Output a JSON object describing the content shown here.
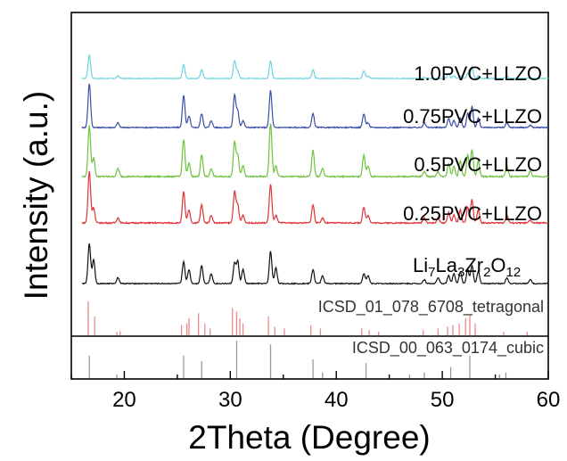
{
  "chart_data": {
    "type": "line",
    "xlabel": "2Theta (Degree)",
    "ylabel": "Intensity (a.u.)",
    "xlim": [
      15,
      60
    ],
    "xticks": [
      20,
      30,
      40,
      50,
      60
    ],
    "grid": false,
    "legend": "labels placed beside each pattern",
    "peaks_x": [
      16.7,
      17.1,
      19.4,
      25.6,
      26.1,
      27.3,
      28.2,
      30.4,
      30.7,
      31.2,
      33.8,
      34.3,
      37.8,
      38.7,
      42.6,
      43.0,
      48.3,
      49.6,
      50.6,
      51.1,
      51.7,
      52.4,
      52.8,
      53.4,
      56.1,
      58.3
    ],
    "series": [
      {
        "name": "1.0PVC+LLZO",
        "color": "#6cd3df",
        "peak_heights": [
          0.95,
          0,
          0.1,
          0.55,
          0,
          0.35,
          0,
          0.7,
          0.3,
          0,
          0.7,
          0,
          0.35,
          0,
          0.3,
          0.1,
          0.05,
          0,
          0.2,
          0.1,
          0.1,
          0.2,
          0.45,
          0.1,
          0.1,
          0
        ]
      },
      {
        "name": "0.75PVC+LLZO",
        "color": "#3b4ea6",
        "peak_heights": [
          0.95,
          0,
          0.1,
          0.7,
          0.25,
          0.3,
          0.15,
          0.7,
          0.35,
          0.15,
          0.8,
          0,
          0.3,
          0,
          0.3,
          0.1,
          0.1,
          0,
          0.2,
          0.15,
          0.2,
          0.3,
          0.45,
          0.2,
          0.1,
          0.05
        ]
      },
      {
        "name": "0.5PVC+LLZO",
        "color": "#6ec23f",
        "peak_heights": [
          0.95,
          0.35,
          0.15,
          0.7,
          0.25,
          0.4,
          0.15,
          0.65,
          0.4,
          0.2,
          1.0,
          0.2,
          0.5,
          0.15,
          0.4,
          0.2,
          0.1,
          0.1,
          0.25,
          0.2,
          0.3,
          0.4,
          0.5,
          0.3,
          0.2,
          0.1
        ]
      },
      {
        "name": "0.25PVC+LLZO",
        "color": "#e03138",
        "peak_heights": [
          1.0,
          0.3,
          0.1,
          0.6,
          0.25,
          0.35,
          0.15,
          0.6,
          0.35,
          0.15,
          0.75,
          0.15,
          0.35,
          0.1,
          0.3,
          0.15,
          0.1,
          0.1,
          0.2,
          0.15,
          0.25,
          0.3,
          0.45,
          0.25,
          0.15,
          0.05
        ]
      },
      {
        "name_parts": [
          {
            "t": "Li",
            "s": "n"
          },
          {
            "t": "7",
            "s": "sub"
          },
          {
            "t": "La",
            "s": "n"
          },
          {
            "t": "3",
            "s": "sub"
          },
          {
            "t": "Zr",
            "s": "n"
          },
          {
            "t": "2",
            "s": "sub"
          },
          {
            "t": "O",
            "s": "n"
          },
          {
            "t": "12",
            "s": "sub"
          }
        ],
        "name": "Li7La3Zr2O12",
        "color": "#111111",
        "peak_heights": [
          1.0,
          0.6,
          0.15,
          0.55,
          0.35,
          0.45,
          0.25,
          0.5,
          0.55,
          0.35,
          0.8,
          0.4,
          0.35,
          0.2,
          0.25,
          0.2,
          0.1,
          0.15,
          0.2,
          0.25,
          0.3,
          0.35,
          0.45,
          0.3,
          0.15,
          0.1
        ]
      }
    ],
    "references": [
      {
        "label": "ICSD_01_078_6708_tetragonal",
        "color": "#e88a8a",
        "lines_x": [
          16.6,
          17.2,
          19.3,
          19.6,
          25.4,
          25.9,
          26.1,
          27.0,
          27.6,
          28.1,
          30.2,
          30.6,
          30.9,
          31.2,
          33.6,
          34.2,
          35.1,
          37.6,
          38.5,
          42.4,
          43.1,
          44.0,
          48.2,
          49.6,
          50.5,
          51.0,
          51.6,
          52.2,
          52.6,
          53.1,
          55.8,
          58.0
        ],
        "lines_h": [
          1.0,
          0.55,
          0.1,
          0.12,
          0.3,
          0.35,
          0.5,
          0.65,
          0.35,
          0.2,
          0.8,
          0.7,
          0.5,
          0.35,
          0.55,
          0.25,
          0.2,
          0.3,
          0.2,
          0.2,
          0.15,
          0.1,
          0.15,
          0.2,
          0.25,
          0.3,
          0.35,
          0.5,
          0.6,
          0.35,
          0.1,
          0.1
        ]
      },
      {
        "label": "ICSD_00_063_0174_cubic",
        "color": "#9a9a9a",
        "lines_x": [
          16.7,
          19.3,
          25.6,
          27.3,
          30.6,
          33.8,
          37.8,
          38.7,
          42.8,
          46.9,
          48.3,
          50.8,
          52.6,
          55.4,
          56.0
        ],
        "lines_h": [
          0.6,
          0.1,
          0.6,
          0.45,
          1.0,
          0.9,
          0.5,
          0.15,
          0.4,
          0.1,
          0.15,
          0.3,
          0.6,
          0.1,
          0.15
        ]
      }
    ]
  }
}
